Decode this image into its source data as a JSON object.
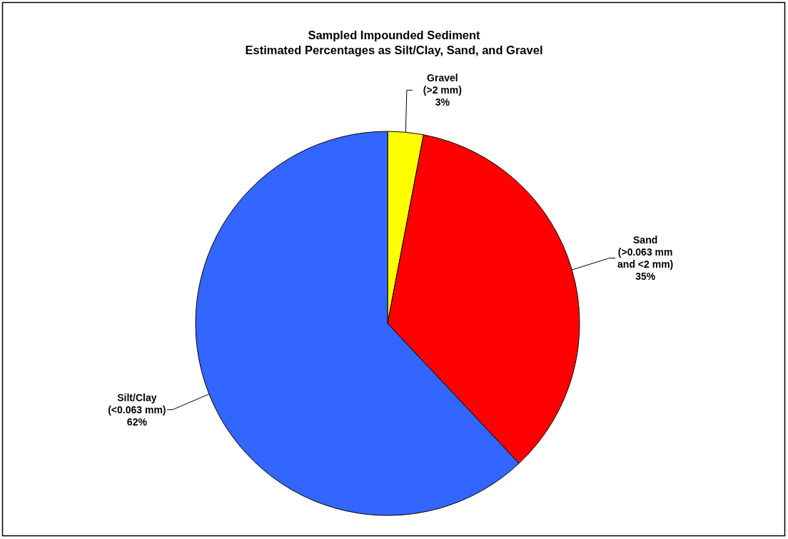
{
  "chart_data": {
    "type": "pie",
    "title": "Sampled Impounded Sediment\nEstimated Percentages as Silt/Clay, Sand, and Gravel",
    "categories": [
      "Gravel\n(>2 mm)",
      "Sand\n(>0.063 mm\nand <2 mm)",
      "Silt/Clay\n(<0.063 mm)"
    ],
    "values": [
      3,
      35,
      62
    ],
    "colors": [
      "#ffff00",
      "#ff0000",
      "#3366ff"
    ],
    "value_labels": [
      "3%",
      "35%",
      "62%"
    ],
    "legend": false
  }
}
